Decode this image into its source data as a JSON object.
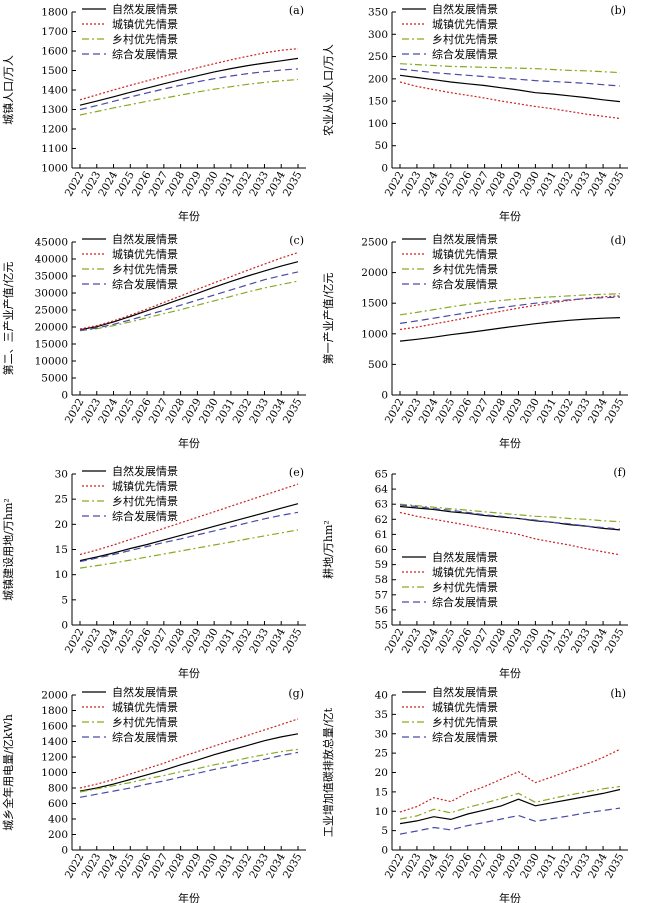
{
  "chart_data": [
    {
      "type": "line",
      "panel_label": "(a)",
      "ylabel": "城镇人口/万人",
      "xlabel": "年份",
      "ylim": [
        1000,
        1800
      ],
      "yticks": [
        1000,
        1100,
        1200,
        1300,
        1400,
        1500,
        1600,
        1700,
        1800
      ],
      "x": [
        "2022",
        "2023",
        "2024",
        "2025",
        "2026",
        "2027",
        "2028",
        "2029",
        "2030",
        "2031",
        "2032",
        "2033",
        "2034",
        "2035"
      ],
      "legend_position": "top-left",
      "series": [
        {
          "name": "自然发展情景",
          "color": "#000000",
          "dash": "solid",
          "values": [
            1322,
            1343,
            1365,
            1388,
            1410,
            1432,
            1453,
            1473,
            1493,
            1510,
            1525,
            1538,
            1550,
            1562
          ]
        },
        {
          "name": "城镇优先情景",
          "color": "#cc2222",
          "dash": "dotted",
          "values": [
            1350,
            1375,
            1400,
            1424,
            1447,
            1470,
            1492,
            1514,
            1535,
            1555,
            1573,
            1590,
            1604,
            1612
          ]
        },
        {
          "name": "乡村优先情景",
          "color": "#88aa22",
          "dash": "dashdot",
          "values": [
            1272,
            1290,
            1308,
            1325,
            1342,
            1358,
            1374,
            1390,
            1404,
            1417,
            1429,
            1439,
            1447,
            1454
          ]
        },
        {
          "name": "综合发展情景",
          "color": "#4a4aa8",
          "dash": "dashed",
          "values": [
            1300,
            1320,
            1342,
            1364,
            1385,
            1405,
            1424,
            1442,
            1458,
            1472,
            1484,
            1494,
            1502,
            1508
          ]
        }
      ]
    },
    {
      "type": "line",
      "panel_label": "(b)",
      "ylabel": "农业从业人口/万人",
      "xlabel": "年份",
      "ylim": [
        0,
        350
      ],
      "yticks": [
        0,
        50,
        100,
        150,
        200,
        250,
        300,
        350
      ],
      "x": [
        "2022",
        "2023",
        "2024",
        "2025",
        "2026",
        "2027",
        "2028",
        "2029",
        "2030",
        "2031",
        "2032",
        "2033",
        "2034",
        "2035"
      ],
      "legend_position": "top-left",
      "series": [
        {
          "name": "自然发展情景",
          "color": "#000000",
          "dash": "solid",
          "values": [
            208,
            203,
            198,
            193,
            189,
            185,
            180,
            175,
            169,
            166,
            162,
            158,
            153,
            149
          ]
        },
        {
          "name": "城镇优先情景",
          "color": "#cc2222",
          "dash": "dotted",
          "values": [
            193,
            183,
            176,
            169,
            163,
            157,
            150,
            144,
            138,
            133,
            127,
            121,
            116,
            111
          ]
        },
        {
          "name": "乡村优先情景",
          "color": "#88aa22",
          "dash": "dashdot",
          "values": [
            234,
            232,
            230,
            228,
            227,
            226,
            225,
            224,
            223,
            221,
            219,
            218,
            216,
            214
          ]
        },
        {
          "name": "综合发展情景",
          "color": "#4a4aa8",
          "dash": "dashed",
          "values": [
            222,
            218,
            214,
            211,
            208,
            205,
            202,
            199,
            196,
            194,
            192,
            190,
            187,
            184
          ]
        }
      ]
    },
    {
      "type": "line",
      "panel_label": "(c)",
      "ylabel": "第二、三产业产值/亿元",
      "xlabel": "年份",
      "ylim": [
        0,
        45000
      ],
      "yticks": [
        0,
        5000,
        10000,
        15000,
        20000,
        25000,
        30000,
        35000,
        40000,
        45000
      ],
      "x": [
        "2022",
        "2023",
        "2024",
        "2025",
        "2026",
        "2027",
        "2028",
        "2029",
        "2030",
        "2031",
        "2032",
        "2033",
        "2034",
        "2035"
      ],
      "legend_position": "top-left",
      "series": [
        {
          "name": "自然发展情景",
          "color": "#000000",
          "dash": "solid",
          "values": [
            19200,
            20100,
            21500,
            23100,
            24800,
            26500,
            28200,
            29900,
            31700,
            33400,
            35000,
            36500,
            37900,
            39200
          ]
        },
        {
          "name": "城镇优先情景",
          "color": "#cc2222",
          "dash": "dotted",
          "values": [
            19400,
            20400,
            21800,
            23500,
            25300,
            27200,
            29100,
            31100,
            33000,
            34800,
            36700,
            38500,
            40300,
            41900
          ]
        },
        {
          "name": "乡村优先情景",
          "color": "#88aa22",
          "dash": "dashdot",
          "values": [
            18900,
            19500,
            20400,
            21500,
            22700,
            23900,
            25100,
            26400,
            27700,
            29000,
            30300,
            31500,
            32500,
            33500
          ]
        },
        {
          "name": "综合发展情景",
          "color": "#4a4aa8",
          "dash": "dashed",
          "values": [
            19000,
            19700,
            20800,
            22100,
            23500,
            24900,
            26400,
            27900,
            29400,
            30900,
            32400,
            33900,
            35100,
            36200
          ]
        }
      ]
    },
    {
      "type": "line",
      "panel_label": "(d)",
      "ylabel": "第一产业产值/亿元",
      "xlabel": "年份",
      "ylim": [
        0,
        2500
      ],
      "yticks": [
        0,
        500,
        1000,
        1500,
        2000,
        2500
      ],
      "x": [
        "2022",
        "2023",
        "2024",
        "2025",
        "2026",
        "2027",
        "2028",
        "2029",
        "2030",
        "2031",
        "2032",
        "2033",
        "2034",
        "2035"
      ],
      "legend_position": "top-left",
      "series": [
        {
          "name": "自然发展情景",
          "color": "#000000",
          "dash": "solid",
          "values": [
            880,
            910,
            945,
            985,
            1020,
            1055,
            1095,
            1130,
            1165,
            1195,
            1220,
            1240,
            1255,
            1265
          ]
        },
        {
          "name": "城镇优先情景",
          "color": "#cc2222",
          "dash": "dotted",
          "values": [
            1070,
            1110,
            1160,
            1210,
            1265,
            1320,
            1370,
            1420,
            1465,
            1505,
            1545,
            1580,
            1605,
            1620
          ]
        },
        {
          "name": "乡村优先情景",
          "color": "#88aa22",
          "dash": "dashdot",
          "values": [
            1310,
            1350,
            1395,
            1440,
            1480,
            1515,
            1545,
            1570,
            1590,
            1605,
            1620,
            1635,
            1645,
            1655
          ]
        },
        {
          "name": "综合发展情景",
          "color": "#4a4aa8",
          "dash": "dashed",
          "values": [
            1170,
            1210,
            1255,
            1300,
            1345,
            1390,
            1430,
            1465,
            1500,
            1530,
            1555,
            1575,
            1590,
            1600
          ]
        }
      ]
    },
    {
      "type": "line",
      "panel_label": "(e)",
      "ylabel": "城镇建设用地/万hm²",
      "xlabel": "年份",
      "ylim": [
        0,
        30
      ],
      "yticks": [
        0,
        5,
        10,
        15,
        20,
        25,
        30
      ],
      "x": [
        "2022",
        "2023",
        "2024",
        "2025",
        "2026",
        "2027",
        "2028",
        "2029",
        "2030",
        "2031",
        "2032",
        "2033",
        "2034",
        "2035"
      ],
      "legend_position": "top-left",
      "series": [
        {
          "name": "自然发展情景",
          "color": "#000000",
          "dash": "solid",
          "values": [
            12.8,
            13.5,
            14.3,
            15.2,
            16.0,
            16.9,
            17.8,
            18.7,
            19.6,
            20.5,
            21.4,
            22.3,
            23.2,
            24.1
          ]
        },
        {
          "name": "城镇优先情景",
          "color": "#cc2222",
          "dash": "dotted",
          "values": [
            14.0,
            14.9,
            15.9,
            17.0,
            18.1,
            19.2,
            20.3,
            21.4,
            22.5,
            23.6,
            24.7,
            25.8,
            26.9,
            28.0
          ]
        },
        {
          "name": "乡村优先情景",
          "color": "#88aa22",
          "dash": "dashdot",
          "values": [
            11.3,
            11.8,
            12.3,
            12.9,
            13.5,
            14.1,
            14.7,
            15.3,
            15.9,
            16.5,
            17.1,
            17.7,
            18.3,
            18.9
          ]
        },
        {
          "name": "综合发展情景",
          "color": "#4a4aa8",
          "dash": "dashed",
          "values": [
            12.6,
            13.3,
            14.0,
            14.8,
            15.6,
            16.4,
            17.1,
            17.9,
            18.7,
            19.5,
            20.3,
            21.1,
            21.8,
            22.4
          ]
        }
      ]
    },
    {
      "type": "line",
      "panel_label": "(f)",
      "ylabel": "耕地/万hm²",
      "xlabel": "年份",
      "ylim": [
        55,
        65
      ],
      "yticks": [
        55,
        56,
        57,
        58,
        59,
        60,
        61,
        62,
        63,
        64,
        65
      ],
      "x": [
        "2022",
        "2023",
        "2024",
        "2025",
        "2026",
        "2027",
        "2028",
        "2029",
        "2030",
        "2031",
        "2032",
        "2033",
        "2034",
        "2035"
      ],
      "legend_position": "bottom-left",
      "series": [
        {
          "name": "自然发展情景",
          "color": "#000000",
          "dash": "solid",
          "values": [
            62.85,
            62.75,
            62.65,
            62.5,
            62.4,
            62.25,
            62.15,
            62.05,
            61.9,
            61.8,
            61.65,
            61.55,
            61.4,
            61.3
          ]
        },
        {
          "name": "城镇优先情景",
          "color": "#cc2222",
          "dash": "dotted",
          "values": [
            62.45,
            62.2,
            62.0,
            61.8,
            61.6,
            61.4,
            61.2,
            61.0,
            60.7,
            60.5,
            60.3,
            60.05,
            59.85,
            59.65
          ]
        },
        {
          "name": "乡村优先情景",
          "color": "#88aa22",
          "dash": "dashdot",
          "values": [
            63.0,
            62.9,
            62.8,
            62.7,
            62.6,
            62.5,
            62.4,
            62.3,
            62.2,
            62.15,
            62.05,
            62.0,
            61.9,
            61.85
          ]
        },
        {
          "name": "综合发展情景",
          "color": "#4a4aa8",
          "dash": "dashed",
          "values": [
            62.95,
            62.85,
            62.7,
            62.6,
            62.45,
            62.3,
            62.2,
            62.05,
            61.95,
            61.8,
            61.7,
            61.55,
            61.45,
            61.35
          ]
        }
      ]
    },
    {
      "type": "line",
      "panel_label": "(g)",
      "ylabel": "城乡全年用电量/亿kWh",
      "xlabel": "年份",
      "ylim": [
        0,
        2000
      ],
      "yticks": [
        0,
        200,
        400,
        600,
        800,
        1000,
        1200,
        1400,
        1600,
        1800,
        2000
      ],
      "x": [
        "2022",
        "2023",
        "2024",
        "2025",
        "2026",
        "2027",
        "2028",
        "2029",
        "2030",
        "2031",
        "2032",
        "2033",
        "2034",
        "2035"
      ],
      "legend_position": "top-left",
      "series": [
        {
          "name": "自然发展情景",
          "color": "#000000",
          "dash": "solid",
          "values": [
            760,
            800,
            850,
            910,
            970,
            1030,
            1100,
            1160,
            1230,
            1290,
            1350,
            1410,
            1460,
            1500
          ]
        },
        {
          "name": "城镇优先情景",
          "color": "#cc2222",
          "dash": "dotted",
          "values": [
            800,
            850,
            910,
            980,
            1050,
            1120,
            1200,
            1270,
            1340,
            1410,
            1480,
            1550,
            1620,
            1690
          ]
        },
        {
          "name": "乡村优先情景",
          "color": "#88aa22",
          "dash": "dashdot",
          "values": [
            750,
            790,
            830,
            870,
            920,
            960,
            1010,
            1050,
            1100,
            1140,
            1190,
            1230,
            1270,
            1300
          ]
        },
        {
          "name": "综合发展情景",
          "color": "#4a4aa8",
          "dash": "dashed",
          "values": [
            680,
            720,
            760,
            800,
            850,
            890,
            940,
            990,
            1040,
            1080,
            1130,
            1170,
            1220,
            1260
          ]
        }
      ]
    },
    {
      "type": "line",
      "panel_label": "(h)",
      "ylabel": "工业增加值碳排放总量/亿t",
      "xlabel": "年份",
      "ylim": [
        0,
        40
      ],
      "yticks": [
        0,
        5,
        10,
        15,
        20,
        25,
        30,
        35,
        40
      ],
      "x": [
        "2022",
        "2023",
        "2024",
        "2025",
        "2026",
        "2027",
        "2028",
        "2029",
        "2030",
        "2031",
        "2032",
        "2033",
        "2034",
        "2035"
      ],
      "legend_position": "top-left",
      "series": [
        {
          "name": "自然发展情景",
          "color": "#000000",
          "dash": "solid",
          "values": [
            6.8,
            7.5,
            8.6,
            7.9,
            9.3,
            10.3,
            11.4,
            13.1,
            11.4,
            12.2,
            13.0,
            13.8,
            14.6,
            15.6
          ]
        },
        {
          "name": "城镇优先情景",
          "color": "#cc2222",
          "dash": "dotted",
          "values": [
            9.8,
            11.2,
            13.5,
            12.5,
            14.8,
            16.4,
            18.3,
            20.2,
            17.4,
            18.9,
            20.5,
            22.1,
            23.9,
            26.0
          ]
        },
        {
          "name": "乡村优先情景",
          "color": "#88aa22",
          "dash": "dashdot",
          "values": [
            8.0,
            8.8,
            10.5,
            9.6,
            11.0,
            12.1,
            13.3,
            14.6,
            12.3,
            13.3,
            14.2,
            15.0,
            15.8,
            16.4
          ]
        },
        {
          "name": "综合发展情景",
          "color": "#4a4aa8",
          "dash": "dashed",
          "values": [
            4.1,
            4.9,
            5.8,
            5.2,
            6.3,
            7.1,
            8.0,
            8.9,
            7.4,
            8.1,
            8.8,
            9.6,
            10.2,
            10.8
          ]
        }
      ]
    }
  ]
}
